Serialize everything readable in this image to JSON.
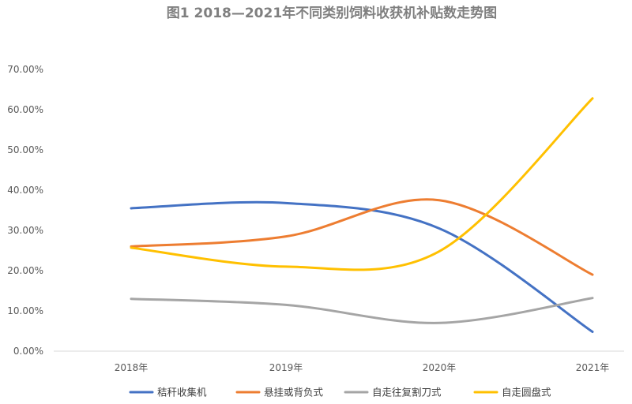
{
  "chart_data": {
    "type": "line",
    "title": "图1  2018—2021年不同类别饲料收获机补贴数走势图",
    "categories": [
      "2018年",
      "2019年",
      "2020年",
      "2021年"
    ],
    "y_ticks": [
      "0.00%",
      "10.00%",
      "20.00%",
      "30.00%",
      "40.00%",
      "50.00%",
      "60.00%",
      "70.00%"
    ],
    "ylim": [
      0,
      70
    ],
    "y_unit": "%",
    "grid": false,
    "smooth": true,
    "legend_position": "bottom",
    "series": [
      {
        "name": "秸秆收集机",
        "color": "#4472c4",
        "values": [
          35.5,
          36.8,
          30.5,
          4.8
        ]
      },
      {
        "name": "悬挂或背负式",
        "color": "#ed7d31",
        "values": [
          26.0,
          28.5,
          37.5,
          19.0
        ]
      },
      {
        "name": "自走往复割刀式",
        "color": "#a5a5a5",
        "values": [
          13.0,
          11.5,
          7.0,
          13.2
        ]
      },
      {
        "name": "自走圆盘式",
        "color": "#ffc000",
        "values": [
          25.7,
          21.0,
          24.8,
          62.8
        ]
      }
    ]
  }
}
